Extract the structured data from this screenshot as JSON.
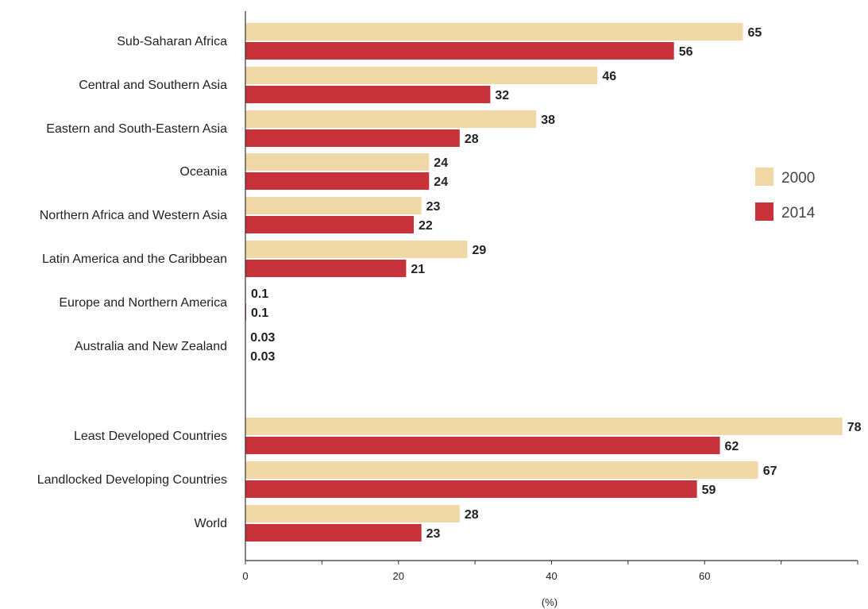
{
  "chart_data": {
    "type": "bar",
    "orientation": "horizontal",
    "categories": [
      "Sub-Saharan Africa",
      "Central and Southern Asia",
      "Eastern and South-Eastern Asia",
      "Oceania",
      "Northern Africa and Western Asia",
      "Latin America and the Caribbean",
      "Europe and Northern America",
      "Australia and New Zealand",
      "Least Developed Countries",
      "Landlocked Developing Countries",
      "World"
    ],
    "series": [
      {
        "name": "2000",
        "color": "#f0d9a6",
        "values": [
          65,
          46,
          38,
          24,
          23,
          29,
          0.1,
          0.03,
          78,
          67,
          28
        ],
        "labels": [
          "65",
          "46",
          "38",
          "24",
          "23",
          "29",
          "0.1",
          "0.03",
          "78",
          "67",
          "28"
        ]
      },
      {
        "name": "2014",
        "color": "#c8323a",
        "values": [
          56,
          32,
          28,
          24,
          22,
          21,
          0.1,
          0.03,
          62,
          59,
          23
        ],
        "labels": [
          "56",
          "32",
          "28",
          "24",
          "22",
          "21",
          "0.1",
          "0.03",
          "62",
          "59",
          "23"
        ]
      }
    ],
    "x_ticks": [
      0,
      20,
      40,
      60
    ],
    "xlim": [
      0,
      80
    ],
    "xlabel": "(%)",
    "legend_position": "right",
    "grid": false
  }
}
